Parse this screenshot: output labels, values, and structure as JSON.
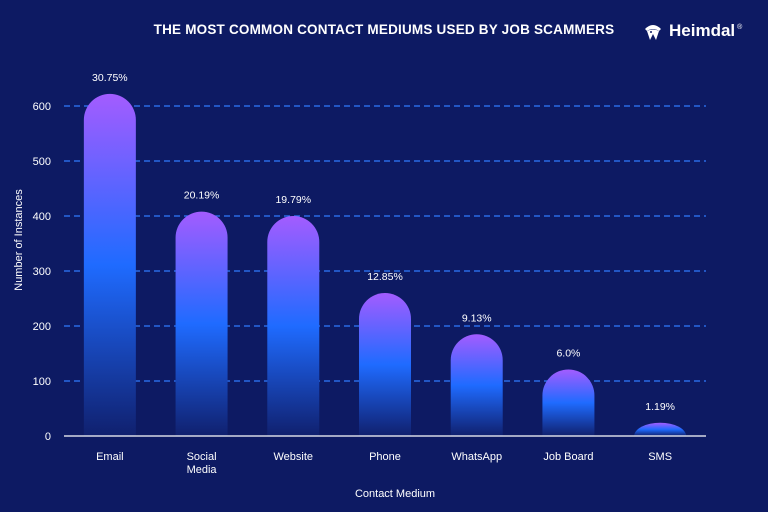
{
  "chart_data": {
    "type": "bar",
    "title": "THE MOST COMMON CONTACT MEDIUMS USED BY JOB SCAMMERS",
    "xlabel": "Contact Medium",
    "ylabel": "Number of Instances",
    "ylim": [
      0,
      640
    ],
    "yticks": [
      0,
      100,
      200,
      300,
      400,
      500,
      600
    ],
    "grid": true,
    "categories": [
      [
        "Email"
      ],
      [
        "Social",
        "Media"
      ],
      [
        "Website"
      ],
      [
        "Phone"
      ],
      [
        "WhatsApp"
      ],
      [
        "Job Board"
      ],
      [
        "SMS"
      ]
    ],
    "values": [
      622,
      408,
      400,
      260,
      185,
      121,
      24
    ],
    "labels": [
      "30.75%",
      "20.19%",
      "19.79%",
      "12.85%",
      "9.13%",
      "6.0%",
      "1.19%"
    ]
  },
  "brand": {
    "name": "Heimdal",
    "reg": "®",
    "logo_icon": "helmet-icon"
  },
  "colors": {
    "background": "#0d1a63",
    "bar_top": "#a35cff",
    "bar_mid": "#1f6bff",
    "bar_bottom": "#10206e",
    "grid": "#2f7bff"
  }
}
